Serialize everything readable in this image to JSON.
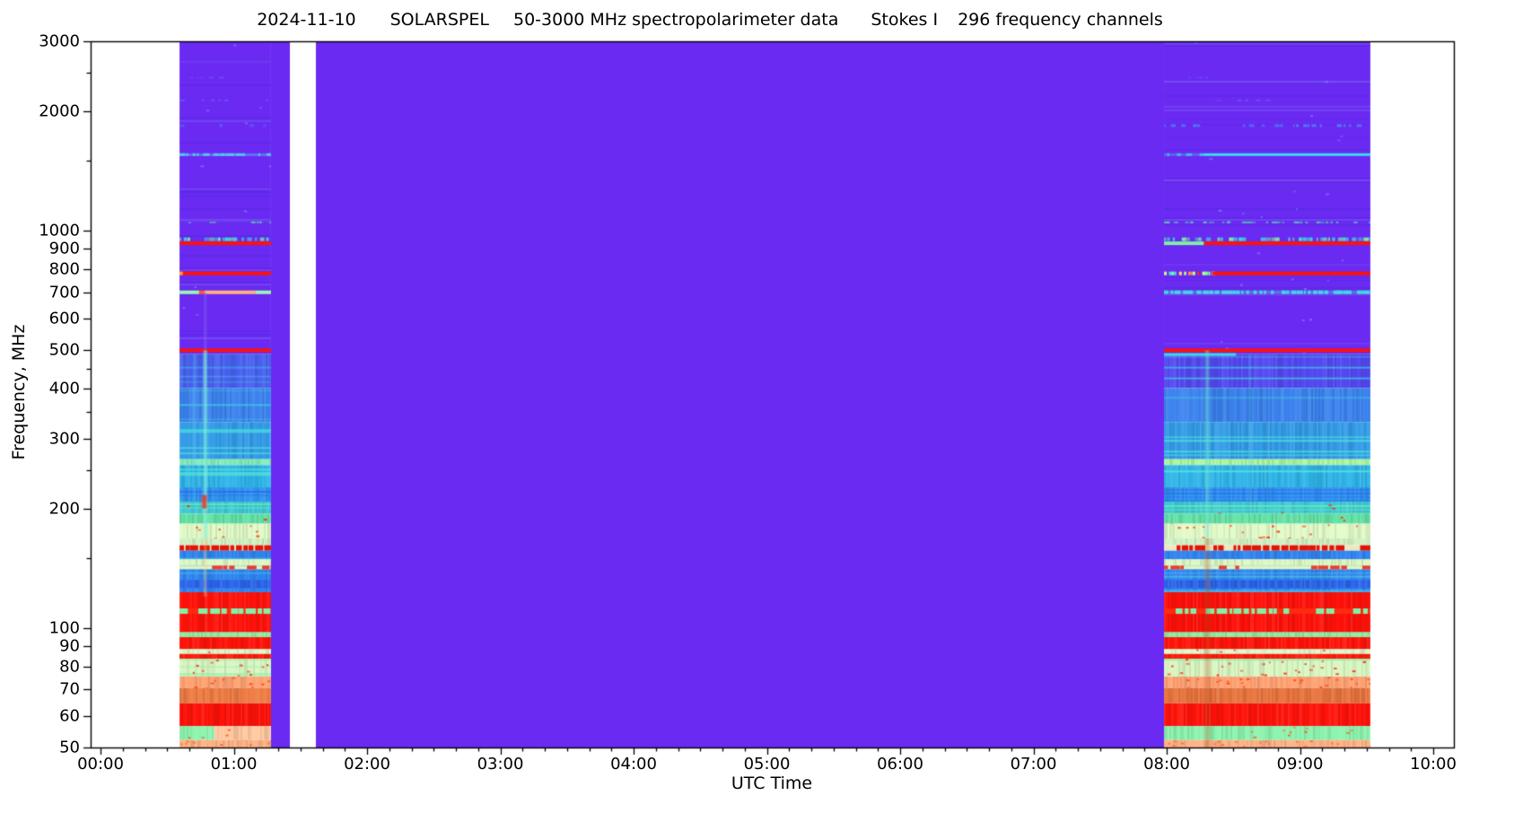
{
  "title": {
    "date": "2024-11-10",
    "instrument": "SOLARSPEL",
    "band": "50-3000 MHz spectropolarimeter data",
    "stokes": "Stokes I",
    "channels": "296 frequency channels"
  },
  "axes": {
    "x_label": "UTC Time",
    "x_ticks": [
      {
        "hour": 0,
        "label": "00:00"
      },
      {
        "hour": 1,
        "label": "01:00"
      },
      {
        "hour": 2,
        "label": "02:00"
      },
      {
        "hour": 3,
        "label": "03:00"
      },
      {
        "hour": 4,
        "label": "04:00"
      },
      {
        "hour": 5,
        "label": "05:00"
      },
      {
        "hour": 6,
        "label": "06:00"
      },
      {
        "hour": 7,
        "label": "07:00"
      },
      {
        "hour": 8,
        "label": "08:00"
      },
      {
        "hour": 9,
        "label": "09:00"
      },
      {
        "hour": 10,
        "label": "10:00"
      }
    ],
    "x_minor_per_hour": 6,
    "y_label": "Frequency, MHz",
    "y_ticks": [
      {
        "mhz": 3000,
        "label": "3000"
      },
      {
        "mhz": 2000,
        "label": "2000"
      },
      {
        "mhz": 1000,
        "label": "1000"
      },
      {
        "mhz": 900,
        "label": "900"
      },
      {
        "mhz": 800,
        "label": "800"
      },
      {
        "mhz": 700,
        "label": "700"
      },
      {
        "mhz": 600,
        "label": "600"
      },
      {
        "mhz": 500,
        "label": "500"
      },
      {
        "mhz": 400,
        "label": "400"
      },
      {
        "mhz": 300,
        "label": "300"
      },
      {
        "mhz": 200,
        "label": "200"
      },
      {
        "mhz": 100,
        "label": "100"
      },
      {
        "mhz": 90,
        "label": "90"
      },
      {
        "mhz": 80,
        "label": "80"
      },
      {
        "mhz": 70,
        "label": "70"
      },
      {
        "mhz": 60,
        "label": "60"
      },
      {
        "mhz": 50,
        "label": "50"
      }
    ],
    "y_minor_ticks_mhz": [
      2500,
      1500,
      450,
      350,
      250,
      150
    ]
  },
  "chart_data": {
    "type": "heatmap",
    "title": "2024-11-10 SOLARSPEL 50-3000 MHz spectropolarimeter data Stokes I 296 frequency channels",
    "xlabel": "UTC Time",
    "ylabel": "Frequency, MHz",
    "x_range_hours_utc": [
      0,
      10
    ],
    "y_range_mhz": [
      50,
      3000
    ],
    "y_scale": "log",
    "n_frequency_channels": 296,
    "stokes_parameter": "I",
    "colormap": "rainbow (purple = low intensity, red = high intensity)",
    "legend_position": "none",
    "grid": false,
    "observing_segments_utc": [
      [
        "00:36",
        "01:17"
      ],
      [
        "07:59",
        "09:32"
      ]
    ],
    "quiet_purple_spans_utc": [
      [
        "01:17",
        "01:25"
      ],
      [
        "01:37",
        "07:59"
      ]
    ],
    "data_gaps_white_utc": [
      [
        "01:25",
        "01:37"
      ],
      [
        "09:32",
        "10:05"
      ]
    ],
    "rfi_lines_mhz": [
      2430,
      2130,
      1840,
      1555,
      1050,
      952,
      930,
      781,
      700,
      500,
      488
    ],
    "render": {
      "quiet_color": "#6a2af2",
      "no_data_color": "#ffffff",
      "quiet_regions_hours": [
        [
          1.279,
          1.421
        ],
        [
          1.616,
          7.98
        ]
      ],
      "segments": [
        {
          "id": "A",
          "t": [
            0.593,
            1.279
          ]
        },
        {
          "id": "B",
          "t": [
            7.98,
            9.528
          ]
        }
      ],
      "bands": [
        {
          "f": [
            3000,
            489
          ],
          "color": "#6a2af2",
          "tex": "purple"
        },
        {
          "f": [
            489,
            402
          ],
          "color": "#4960f0",
          "tex": "v",
          "rows": {
            "c": "#3fc0ea",
            "p": 0.08
          },
          "B": {
            "color": "#5448f0"
          }
        },
        {
          "f": [
            402,
            330
          ],
          "color": "#3b82ee",
          "tex": "v",
          "rows": {
            "c": "#3ecde8",
            "p": 0.12
          }
        },
        {
          "f": [
            330,
            266
          ],
          "color": "#349ce8",
          "tex": "v",
          "rows": {
            "c": "#4ae0dd",
            "p": 0.2
          }
        },
        {
          "f": [
            266,
            257
          ],
          "color": "#85eebb",
          "tex": "v",
          "B": {
            "color": "#aef7a4"
          }
        },
        {
          "f": [
            257,
            226
          ],
          "color": "#2fb5e9",
          "tex": "v",
          "rows": {
            "c": "#57e6d8",
            "p": 0.22
          }
        },
        {
          "f": [
            226,
            208
          ],
          "color": "#3095f0",
          "tex": "v",
          "rows": {
            "c": "#2a6cee",
            "p": 0.28
          }
        },
        {
          "f": [
            208,
            194
          ],
          "color": "#3fc9da",
          "tex": "v",
          "rows": {
            "c": "#67eab0",
            "p": 0.3
          },
          "sp": {
            "c": "#ff2412",
            "p": 0.01
          }
        },
        {
          "f": [
            194,
            183
          ],
          "color": "#64e2a6",
          "tex": "v",
          "sp": {
            "c": "#ff2412",
            "p": 0.008
          }
        },
        {
          "f": [
            183,
            168
          ],
          "color": "#e2fbc8",
          "tex": "v",
          "sp": {
            "c": "#ff3414",
            "p": 0.03
          }
        },
        {
          "f": [
            168,
            161.5
          ],
          "color": "#d2f2c4",
          "tex": "v"
        },
        {
          "f": [
            161.5,
            156.5
          ],
          "color": "#e21408",
          "tex": "dash",
          "gapc": "#f0e6c0",
          "cover": 0.82
        },
        {
          "f": [
            156.5,
            123
          ],
          "color": "#2f84f0",
          "tex": "v",
          "rows": {
            "c": "#54d8e4",
            "p": 0.16
          }
        },
        {
          "f": [
            149,
            143.5
          ],
          "color": "#ddf8c6",
          "tex": "v"
        },
        {
          "f": [
            143.5,
            140.5
          ],
          "color": "#ee3c2c",
          "tex": "dash",
          "gapc": "#dcf4c4",
          "cover": 0.55
        },
        {
          "f": [
            132,
            126
          ],
          "color": "#2a64ea",
          "tex": "v"
        },
        {
          "f": [
            123,
            97.5
          ],
          "color": "#ff120a",
          "tex": "v"
        },
        {
          "f": [
            112,
            108.5
          ],
          "color": "#83efa8",
          "tex": "dash",
          "gapc": "#ff2a10",
          "cover": 0.5
        },
        {
          "f": [
            97.5,
            94.8
          ],
          "color": "#8af0a2",
          "tex": "v"
        },
        {
          "f": [
            94.8,
            88.4
          ],
          "color": "#ff140a",
          "tex": "v"
        },
        {
          "f": [
            88.4,
            86.0
          ],
          "color": "#dff9c8",
          "tex": "v",
          "sp": {
            "c": "#ff3a18",
            "p": 0.02
          }
        },
        {
          "f": [
            86.0,
            83.6
          ],
          "color": "#ff1c0c",
          "tex": "v"
        },
        {
          "f": [
            83.6,
            75.4
          ],
          "color": "#d9f7c2",
          "tex": "v",
          "rows": {
            "c": "#8ceea8",
            "p": 0.3
          },
          "sp": {
            "c": "#ff3414",
            "p": 0.035
          }
        },
        {
          "f": [
            75.4,
            70.5
          ],
          "color": "#ffa273",
          "tex": "v",
          "sp": {
            "c": "#ff4a1c",
            "p": 0.05
          }
        },
        {
          "f": [
            70.5,
            64.6
          ],
          "color": "#ee7c44",
          "tex": "v",
          "B": {
            "color": "#e8743e"
          }
        },
        {
          "f": [
            64.6,
            56.6
          ],
          "color": "#ff130a",
          "tex": "v"
        },
        {
          "f": [
            56.6,
            52.2
          ],
          "color": "#8df4ae",
          "tex": "v",
          "sp": {
            "c": "#ff5a24",
            "p": 0.02
          },
          "A": {
            "split": {
              "at": 0.38,
              "right": "#ffc9a0"
            }
          }
        },
        {
          "f": [
            52.2,
            50
          ],
          "color": "#ffb286",
          "tex": "v",
          "sp": {
            "c": "#ff6a2e",
            "p": 0.06
          }
        }
      ],
      "lines": [
        {
          "f": 2430,
          "h": 2,
          "spans": [
            {
              "seg": "A",
              "style": "speck",
              "c": "#6d4cf4",
              "d": 0.25
            },
            {
              "seg": "B",
              "t": [
                7.98,
                8.35
              ],
              "style": "speck",
              "c": "#6d4cf4",
              "d": 0.3
            }
          ]
        },
        {
          "f": 2130,
          "h": 2,
          "spans": [
            {
              "seg": "A",
              "style": "speck",
              "c": "#6a55f0",
              "d": 0.3
            },
            {
              "seg": "B",
              "t": [
                8.3,
                8.85
              ],
              "style": "speck",
              "c": "#6a55f0",
              "d": 0.3
            }
          ]
        },
        {
          "f": 1840,
          "h": 3,
          "spans": [
            {
              "seg": "A",
              "style": "speck",
              "c": "#5f64f2",
              "d": 0.35
            },
            {
              "seg": "B",
              "style": "speck",
              "c": "#4f86f2",
              "d": 0.55
            }
          ]
        },
        {
          "f": 1555,
          "h": 3,
          "spans": [
            {
              "seg": "A",
              "style": "speckline",
              "c": "#55c2ee",
              "d": 0.7
            },
            {
              "seg": "B",
              "t": [
                7.98,
                8.28
              ],
              "style": "speckline",
              "c": "#43b8ee",
              "d": 0.6
            },
            {
              "seg": "B",
              "t": [
                8.28,
                9.528
              ],
              "style": "solid",
              "c": "#38dcec"
            }
          ]
        },
        {
          "f": 1050,
          "h": 2,
          "spans": [
            {
              "seg": "A",
              "style": "speck",
              "c": "#58d0b0",
              "d": 0.4
            },
            {
              "seg": "B",
              "style": "speck",
              "c": "#58d0b0",
              "d": 0.45
            }
          ]
        },
        {
          "f": 952,
          "h": 4,
          "spans": [
            {
              "seg": "A",
              "style": "speck2",
              "c": "#3cd8e2",
              "c2": "#7df0a0",
              "d": 0.75
            },
            {
              "seg": "B",
              "style": "speck2",
              "c": "#3cd8e2",
              "c2": "#7df0a0",
              "d": 0.75
            }
          ]
        },
        {
          "f": 930,
          "h": 4,
          "spans": [
            {
              "seg": "A",
              "style": "solid",
              "c": "#ff1208"
            },
            {
              "seg": "B",
              "t": [
                7.98,
                8.28
              ],
              "style": "solid",
              "c": "#7df2a2"
            },
            {
              "seg": "B",
              "t": [
                8.28,
                9.528
              ],
              "style": "solid",
              "c": "#ff1208"
            }
          ]
        },
        {
          "f": 781,
          "h": 4,
          "spans": [
            {
              "seg": "A",
              "style": "solidspeck",
              "c": "#ff1208",
              "c2": "#ff9a50",
              "d": 0.93
            },
            {
              "seg": "B",
              "t": [
                7.98,
                8.34
              ],
              "style": "multi",
              "d": 0.8
            },
            {
              "seg": "B",
              "t": [
                8.34,
                9.528
              ],
              "style": "solidspeck",
              "c": "#ff1208",
              "c2": "#ffdf70",
              "d": 0.96
            }
          ]
        },
        {
          "f": 700,
          "h": 4,
          "spans": [
            {
              "seg": "A",
              "t": [
                0.593,
                0.74
              ],
              "style": "solid",
              "c": "#9bf4b2"
            },
            {
              "seg": "A",
              "t": [
                0.74,
                0.78
              ],
              "style": "solid",
              "c": "#ff5a22"
            },
            {
              "seg": "A",
              "t": [
                0.78,
                1.16
              ],
              "style": "solidspeck",
              "c": "#ffb080",
              "c2": "#ff7038",
              "d": 0.85
            },
            {
              "seg": "A",
              "t": [
                1.16,
                1.279
              ],
              "style": "solid",
              "c": "#9bf4b2"
            },
            {
              "seg": "B",
              "style": "speckline",
              "c": "#41d6e2",
              "d": 0.85
            }
          ]
        },
        {
          "f": 500,
          "h": 4,
          "spans": [
            {
              "seg": "A",
              "style": "solid",
              "c": "#ff1208"
            },
            {
              "seg": "B",
              "style": "solid",
              "c": "#ff1208"
            }
          ]
        },
        {
          "f": 488,
          "h": 3,
          "spans": [
            {
              "seg": "B",
              "t": [
                7.98,
                8.52
              ],
              "style": "solid",
              "c": "#3fd8e8"
            }
          ]
        }
      ],
      "bursts": [
        {
          "seg": "A",
          "t": 0.7,
          "w": 3,
          "f": [
            489,
            200
          ],
          "c": "#58c8f0",
          "a": 0.35
        },
        {
          "seg": "A",
          "t": 0.782,
          "w": 5,
          "f": [
            500,
            168
          ],
          "c": "#86f2dc",
          "a": 0.8
        },
        {
          "seg": "A",
          "t": 0.782,
          "w": 4,
          "f": [
            700,
            500
          ],
          "c": "#8a6af6",
          "a": 0.45
        },
        {
          "seg": "A",
          "t": 0.775,
          "w": 7,
          "f": [
            216,
            200
          ],
          "c": "#ff2012",
          "a": 0.95
        },
        {
          "seg": "A",
          "t": 0.782,
          "w": 4,
          "f": [
            168,
            120
          ],
          "c": "#ffd080",
          "a": 0.35
        },
        {
          "seg": "B",
          "t": 8.3,
          "w": 6,
          "f": [
            500,
            168
          ],
          "c": "#74e6d8",
          "a": 0.5
        },
        {
          "seg": "B",
          "t": 8.3,
          "w": 9,
          "f": [
            168,
            50
          ],
          "c": "#b34a20",
          "a": 0.3
        },
        {
          "seg": "B",
          "t": 8.62,
          "w": 3,
          "f": [
            489,
            200
          ],
          "c": "#58c8f0",
          "a": 0.3
        }
      ]
    }
  }
}
